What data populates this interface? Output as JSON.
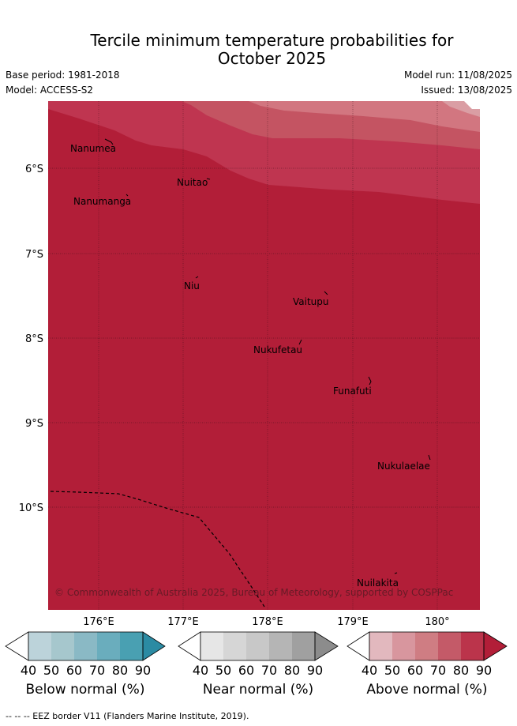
{
  "header": {
    "title_line1": "Tercile minimum temperature probabilities for",
    "title_line2": "October 2025",
    "base_period": "Base period: 1981-2018",
    "model": "Model: ACCESS-S2",
    "model_run": "Model run: 11/08/2025",
    "issued": "Issued: 13/08/2025"
  },
  "map": {
    "lat_labels": [
      "6°S",
      "7°S",
      "8°S",
      "9°S",
      "10°S"
    ],
    "lon_labels": [
      "176°E",
      "177°E",
      "178°E",
      "179°E",
      "180°"
    ],
    "places": [
      "Nanumea",
      "Nuitao",
      "Nanumanga",
      "Niu",
      "Vaitupu",
      "Nukufetau",
      "Funafuti",
      "Nukulaelae",
      "Nuilakita"
    ],
    "copyright": "© Commonwealth of Australia 2025, Bureau of Meteorology, supported by COSPPac",
    "colors": {
      "above_90": "#b21e38",
      "above_80": "#bf3550",
      "above_70": "#c45462",
      "above_60": "#d27680",
      "above_50": "#da9ea4"
    }
  },
  "colorbars": {
    "ticks": [
      "40",
      "50",
      "60",
      "70",
      "80",
      "90"
    ],
    "below": {
      "label": "Below normal (%)",
      "colors": [
        "#bcd3da",
        "#a6c7cd",
        "#8ab9c5",
        "#6aadbd",
        "#49a0b2",
        "#2b8ba3"
      ]
    },
    "near": {
      "label": "Near normal (%)",
      "colors": [
        "#e6e6e6",
        "#d6d6d6",
        "#c8c8c8",
        "#b5b5b5",
        "#a0a0a0",
        "#8c8c8c"
      ]
    },
    "above": {
      "label": "Above normal (%)",
      "colors": [
        "#e2b8be",
        "#d8969e",
        "#cf7d83",
        "#c45a68",
        "#bb344b",
        "#b21e38"
      ]
    }
  },
  "footer": "--  --  -- EEZ border V11 (Flanders Marine Institute, 2019)."
}
